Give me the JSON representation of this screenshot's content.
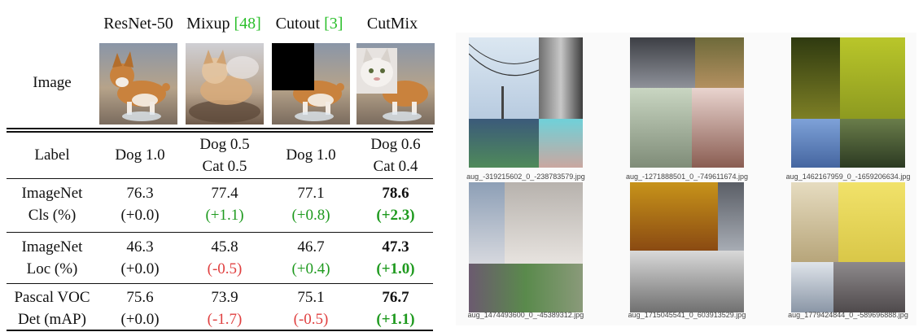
{
  "table": {
    "columns": [
      {
        "name": "ResNet-50",
        "cite": ""
      },
      {
        "name": "Mixup ",
        "cite": "[48]"
      },
      {
        "name": "Cutout ",
        "cite": "[3]"
      },
      {
        "name": "CutMix",
        "cite": ""
      }
    ],
    "image_row_label": "Image",
    "label_row": {
      "label": "Label",
      "cells": [
        {
          "l1": "Dog 1.0",
          "l2": ""
        },
        {
          "l1": "Dog 0.5",
          "l2": "Cat 0.5"
        },
        {
          "l1": "Dog 1.0",
          "l2": ""
        },
        {
          "l1": "Dog 0.6",
          "l2": "Cat 0.4"
        }
      ]
    },
    "metric_rows": [
      {
        "label1": "ImageNet",
        "label2": "Cls (%)",
        "cells": [
          {
            "v": "76.3",
            "d": "(+0.0)",
            "tone": "zero"
          },
          {
            "v": "77.4",
            "d": "(+1.1)",
            "tone": "pos"
          },
          {
            "v": "77.1",
            "d": "(+0.8)",
            "tone": "pos"
          },
          {
            "v": "78.6",
            "d": "(+2.3)",
            "tone": "pos",
            "best": true
          }
        ]
      },
      {
        "label1": "ImageNet",
        "label2": "Loc (%)",
        "cells": [
          {
            "v": "46.3",
            "d": "(+0.0)",
            "tone": "zero"
          },
          {
            "v": "45.8",
            "d": "(-0.5)",
            "tone": "neg"
          },
          {
            "v": "46.7",
            "d": "(+0.4)",
            "tone": "pos"
          },
          {
            "v": "47.3",
            "d": "(+1.0)",
            "tone": "pos",
            "best": true
          }
        ]
      },
      {
        "label1": "Pascal VOC",
        "label2": "Det (mAP)",
        "cells": [
          {
            "v": "75.6",
            "d": "(+0.0)",
            "tone": "zero"
          },
          {
            "v": "73.9",
            "d": "(-1.7)",
            "tone": "neg"
          },
          {
            "v": "75.1",
            "d": "(-0.5)",
            "tone": "neg"
          },
          {
            "v": "76.7",
            "d": "(+1.1)",
            "tone": "pos",
            "best": true
          }
        ]
      }
    ]
  },
  "gallery": {
    "captions": [
      "aug_-319215602_0_-238783579.jpg",
      "aug_-1271888501_0_-749611674.jpg",
      "aug_1462167959_0_-1659206634.jpg",
      "aug_1474493600_0_-45389312.jpg",
      "aug_1715045541_0_603913529.jpg",
      "aug_1779424844_0_-589696888.jpg"
    ]
  }
}
